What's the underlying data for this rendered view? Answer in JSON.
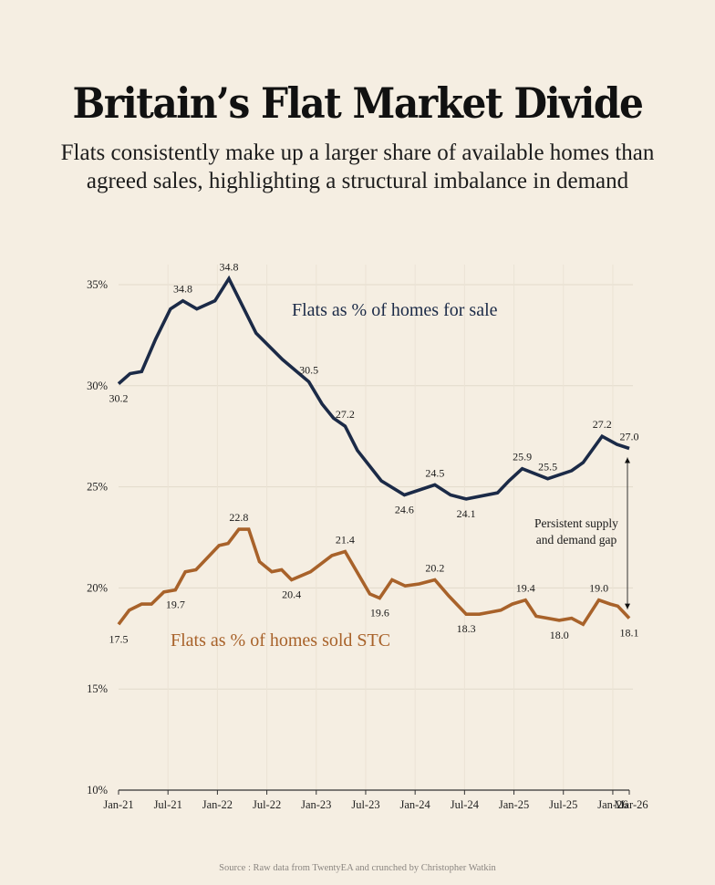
{
  "title": "Britain’s Flat Market Divide",
  "subtitle_lines": [
    "Flats consistently make up a larger share of available homes than",
    "agreed sales, highlighting a structural imbalance in demand"
  ],
  "source": "Source : Raw data from TwentyEA and crunched by Christopher Watkin",
  "colors": {
    "background": "#f5eee2",
    "for_sale": "#1b2a47",
    "sold_stc": "#a8622a",
    "grid": "#e2dacb"
  },
  "chart_data": {
    "type": "line",
    "title": "Britain’s Flat Market Divide",
    "xlabel": "",
    "ylabel": "",
    "x_unit": "months since Jan-21",
    "xlim": [
      0,
      62
    ],
    "ylim": [
      10,
      35
    ],
    "grid": true,
    "y_ticks": [
      10,
      15,
      20,
      25,
      30,
      35
    ],
    "y_tick_labels": [
      "10%",
      "15%",
      "20%",
      "25%",
      "30%",
      "35%"
    ],
    "x_ticks": [
      0,
      6,
      12,
      18,
      24,
      30,
      36,
      42,
      48,
      54,
      60,
      62
    ],
    "x_tick_labels": [
      "Jan-21",
      "Jul-21",
      "Jan-22",
      "Jul-22",
      "Jan-23",
      "Jul-23",
      "Jan-24",
      "Jul-24",
      "Jan-25",
      "Jul-25",
      "Jan-26",
      "Mar-26"
    ],
    "series": [
      {
        "name": "Flats as % of homes for sale",
        "color": "#1b2a47",
        "x": [
          0,
          1.4,
          2.8,
          4.5,
          6.3,
          7.8,
          9.5,
          11.7,
          13.4,
          16.7,
          19.9,
          23.1,
          24.7,
          26.1,
          27.5,
          29.0,
          31.9,
          34.7,
          38.4,
          40.3,
          42.2,
          46.0,
          47.4,
          49.0,
          52.1,
          55.0,
          56.4,
          58.7,
          60.5,
          62.0
        ],
        "values": [
          30.1,
          30.6,
          30.7,
          32.3,
          33.8,
          34.2,
          33.8,
          34.2,
          35.3,
          32.6,
          31.3,
          30.2,
          29.1,
          28.4,
          28.0,
          26.8,
          25.3,
          24.6,
          25.1,
          24.6,
          24.4,
          24.7,
          25.3,
          25.9,
          25.4,
          25.8,
          26.2,
          27.5,
          27.1,
          26.9
        ],
        "data_labels": [
          {
            "x": 0,
            "text": "30.2",
            "pos": "below"
          },
          {
            "x": 7.8,
            "text": "34.8",
            "pos": "above"
          },
          {
            "x": 13.4,
            "text": "34.8",
            "pos": "above"
          },
          {
            "x": 23.1,
            "text": "30.5",
            "pos": "above"
          },
          {
            "x": 27.5,
            "text": "27.2",
            "pos": "above"
          },
          {
            "x": 34.7,
            "text": "24.6",
            "pos": "below"
          },
          {
            "x": 38.4,
            "text": "24.5",
            "pos": "above"
          },
          {
            "x": 42.2,
            "text": "24.1",
            "pos": "below"
          },
          {
            "x": 49.0,
            "text": "25.9",
            "pos": "above"
          },
          {
            "x": 52.1,
            "text": "25.5",
            "pos": "above"
          },
          {
            "x": 58.7,
            "text": "27.2",
            "pos": "above"
          },
          {
            "x": 62.0,
            "text": "27.0",
            "pos": "above"
          }
        ]
      },
      {
        "name": "Flats as % of homes sold STC",
        "color": "#a8622a",
        "x": [
          0,
          1.3,
          2.8,
          4.0,
          5.5,
          6.9,
          8.1,
          9.4,
          12.2,
          13.3,
          14.6,
          15.8,
          17.1,
          18.6,
          19.8,
          21.0,
          23.3,
          24.6,
          25.9,
          27.5,
          30.5,
          31.7,
          33.2,
          34.8,
          36.5,
          38.4,
          40.1,
          42.2,
          43.8,
          45.1,
          46.4,
          47.8,
          49.4,
          50.7,
          52.1,
          53.5,
          55.0,
          56.4,
          58.3,
          59.7,
          60.6,
          62.0
        ],
        "values": [
          18.2,
          18.9,
          19.2,
          19.2,
          19.8,
          19.9,
          20.8,
          20.9,
          22.1,
          22.2,
          22.9,
          22.9,
          21.3,
          20.8,
          20.9,
          20.4,
          20.8,
          21.2,
          21.6,
          21.8,
          19.7,
          19.5,
          20.4,
          20.1,
          20.2,
          20.4,
          19.6,
          18.7,
          18.7,
          18.8,
          18.9,
          19.2,
          19.4,
          18.6,
          18.5,
          18.4,
          18.5,
          18.2,
          19.4,
          19.2,
          19.1,
          18.5
        ],
        "data_labels": [
          {
            "x": 0,
            "text": "17.5",
            "pos": "below"
          },
          {
            "x": 6.9,
            "text": "19.7",
            "pos": "below"
          },
          {
            "x": 14.6,
            "text": "22.8",
            "pos": "above"
          },
          {
            "x": 21.0,
            "text": "20.4",
            "pos": "below"
          },
          {
            "x": 27.5,
            "text": "21.4",
            "pos": "above"
          },
          {
            "x": 31.7,
            "text": "19.6",
            "pos": "below"
          },
          {
            "x": 38.4,
            "text": "20.2",
            "pos": "above"
          },
          {
            "x": 42.2,
            "text": "18.3",
            "pos": "below"
          },
          {
            "x": 49.4,
            "text": "19.4",
            "pos": "above"
          },
          {
            "x": 53.5,
            "text": "18.0",
            "pos": "below"
          },
          {
            "x": 58.3,
            "text": "19.0",
            "pos": "above"
          },
          {
            "x": 62.0,
            "text": "18.1",
            "pos": "below"
          }
        ]
      }
    ],
    "legend": [
      {
        "text": "Flats as % of homes for sale",
        "placement": "inline-upper-center",
        "color": "#1b2a47"
      },
      {
        "text": "Flats as % of homes sold STC",
        "placement": "inline-lower-left",
        "color": "#a8622a"
      }
    ],
    "annotations": [
      {
        "text_lines": [
          "Persistent supply",
          "and demand gap"
        ],
        "type": "double-arrow",
        "x": 62.0,
        "from": 26.9,
        "to": 18.5
      }
    ]
  }
}
